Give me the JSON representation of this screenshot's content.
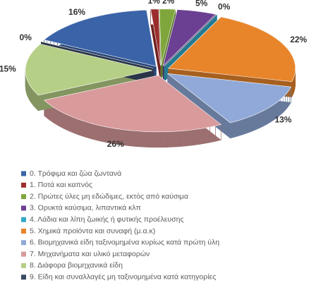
{
  "chart_data": {
    "type": "pie",
    "categories": [
      "0. Τρόφιμα και ζώα ζωντανά",
      "1. Ποτά και καπνός",
      "2. Πρώτες ύλες μη εδώδιμες, εκτός από καύσιμα",
      "3. Ορυκτά καύσιμα, λιπαντικά κλπ",
      "4. Λάδια και λίπη ζωικής ή φυτικής προέλευσης",
      "5. Χημικά προϊόντα και συναφή (μ.α.κ)",
      "6. Βιομηχανικά είδη ταξινομημένα κυρίως κατά πρώτη ύλη",
      "7. Μηχανήματα και υλικό μεταφορών",
      "8. Διάφορα βιομηχανικά είδη",
      "9. Είδη και συναλλαγές μη ταξινομημένα κατά  κατηγορίες"
    ],
    "values": [
      16,
      1,
      2,
      5,
      0,
      22,
      13,
      26,
      15,
      0
    ],
    "value_labels": [
      "16%",
      "1%",
      "2%",
      "5%",
      "0%",
      "22%",
      "13%",
      "26%",
      "15%",
      "0%"
    ],
    "colors": [
      "#3a63a8",
      "#9b2d2d",
      "#7fa63c",
      "#6b3f92",
      "#33a9c6",
      "#e8852b",
      "#91a9d8",
      "#d99a9c",
      "#b6cf86",
      "#3b4a63"
    ],
    "legend": "bottom"
  }
}
